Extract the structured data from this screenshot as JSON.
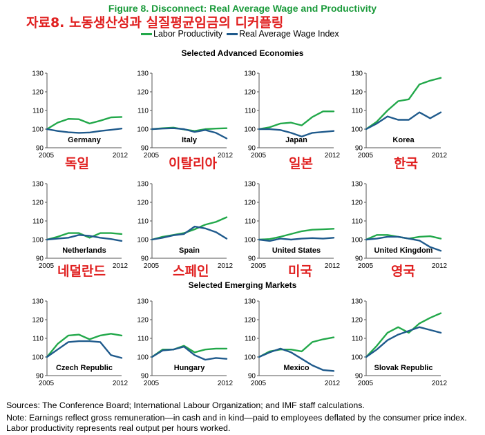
{
  "header": {
    "figure_title": "Figure 8. Disconnect: Real Average Wage and Productivity",
    "korean_title": "자료8. 노동생산성과 실질평균임금의 디커플링"
  },
  "legend": {
    "labor": "Labor Productivity",
    "wage": "Real Average Wage Index",
    "labor_color": "#22a84a",
    "wage_color": "#1f5a8c"
  },
  "sections": {
    "advanced": "Selected Advanced Economies",
    "emerging": "Selected Emerging Markets"
  },
  "korean_labels": [
    "독일",
    "이탈리아",
    "일본",
    "한국",
    "네덜란드",
    "스페인",
    "미국",
    "영국"
  ],
  "footer": {
    "sources": "Sources: The Conference Board; International Labour Organization; and IMF staff calculations.",
    "note_line1": "Note: Earnings reflect gross remuneration—in cash and in kind—paid to employees deflated by the consumer price index.",
    "note_line2": "Labor productivity represents real output per hours worked."
  },
  "chart_data": [
    {
      "type": "line",
      "title": "Germany",
      "x": [
        2005,
        2006,
        2007,
        2008,
        2009,
        2010,
        2011,
        2012
      ],
      "x_tick_labels": [
        "2005",
        "2012"
      ],
      "ylim": [
        90,
        130
      ],
      "yticks": [
        90,
        100,
        110,
        120,
        130
      ],
      "series": [
        {
          "name": "Labor Productivity",
          "values": [
            100,
            103.5,
            105.5,
            105.3,
            103,
            104.5,
            106.3,
            106.5
          ]
        },
        {
          "name": "Real Average Wage Index",
          "values": [
            100,
            99,
            98.3,
            98,
            98.2,
            99,
            99.6,
            100.3
          ]
        }
      ]
    },
    {
      "type": "line",
      "title": "Italy",
      "x": [
        2005,
        2006,
        2007,
        2008,
        2009,
        2010,
        2011,
        2012
      ],
      "x_tick_labels": [
        "2005",
        "2012"
      ],
      "ylim": [
        90,
        130
      ],
      "yticks": [
        90,
        100,
        110,
        120,
        130
      ],
      "series": [
        {
          "name": "Labor Productivity",
          "values": [
            100,
            100.5,
            100.8,
            99.8,
            99,
            100,
            100.3,
            100.5
          ]
        },
        {
          "name": "Real Average Wage Index",
          "values": [
            100,
            100.3,
            100.5,
            100,
            98.5,
            99.5,
            98,
            95
          ]
        }
      ]
    },
    {
      "type": "line",
      "title": "Japan",
      "x": [
        2005,
        2006,
        2007,
        2008,
        2009,
        2010,
        2011,
        2012
      ],
      "x_tick_labels": [
        "2005",
        "2012"
      ],
      "ylim": [
        90,
        130
      ],
      "yticks": [
        90,
        100,
        110,
        120,
        130
      ],
      "series": [
        {
          "name": "Labor Productivity",
          "values": [
            100,
            101,
            103,
            103.5,
            102,
            106.5,
            109.5,
            109.5
          ]
        },
        {
          "name": "Real Average Wage Index",
          "values": [
            100,
            100,
            99.5,
            98,
            96,
            98,
            98.5,
            99
          ]
        }
      ]
    },
    {
      "type": "line",
      "title": "Korea",
      "x": [
        2005,
        2006,
        2007,
        2008,
        2009,
        2010,
        2011,
        2012
      ],
      "x_tick_labels": [
        "2005",
        "2012"
      ],
      "ylim": [
        90,
        130
      ],
      "yticks": [
        90,
        100,
        110,
        120,
        130
      ],
      "series": [
        {
          "name": "Labor Productivity",
          "values": [
            100,
            104,
            110,
            115,
            116,
            124,
            126,
            127.5
          ]
        },
        {
          "name": "Real Average Wage Index",
          "values": [
            100,
            103,
            106.8,
            105,
            105,
            109,
            105.8,
            109
          ]
        }
      ]
    },
    {
      "type": "line",
      "title": "Netherlands",
      "x": [
        2005,
        2006,
        2007,
        2008,
        2009,
        2010,
        2011,
        2012
      ],
      "x_tick_labels": [
        "2005",
        "2012"
      ],
      "ylim": [
        90,
        130
      ],
      "yticks": [
        90,
        100,
        110,
        120,
        130
      ],
      "series": [
        {
          "name": "Labor Productivity",
          "values": [
            100,
            101.5,
            103.5,
            103.5,
            101,
            103.5,
            103.5,
            103
          ]
        },
        {
          "name": "Real Average Wage Index",
          "values": [
            100,
            100.5,
            101,
            102.5,
            102,
            101,
            100.3,
            99.3
          ]
        }
      ]
    },
    {
      "type": "line",
      "title": "Spain",
      "x": [
        2005,
        2006,
        2007,
        2008,
        2009,
        2010,
        2011,
        2012
      ],
      "x_tick_labels": [
        "2005",
        "2012"
      ],
      "ylim": [
        90,
        130
      ],
      "yticks": [
        90,
        100,
        110,
        120,
        130
      ],
      "series": [
        {
          "name": "Labor Productivity",
          "values": [
            100,
            101.5,
            102.5,
            103.5,
            105.5,
            108,
            109.5,
            112
          ]
        },
        {
          "name": "Real Average Wage Index",
          "values": [
            100,
            101,
            102.3,
            103,
            107,
            106,
            104,
            100.5
          ]
        }
      ]
    },
    {
      "type": "line",
      "title": "United States",
      "x": [
        2005,
        2006,
        2007,
        2008,
        2009,
        2010,
        2011,
        2012
      ],
      "x_tick_labels": [
        "2005",
        "2012"
      ],
      "ylim": [
        90,
        130
      ],
      "yticks": [
        90,
        100,
        110,
        120,
        130
      ],
      "series": [
        {
          "name": "Labor Productivity",
          "values": [
            100,
            100.3,
            101.5,
            103,
            104.5,
            105.3,
            105.5,
            105.8
          ]
        },
        {
          "name": "Real Average Wage Index",
          "values": [
            100,
            99.3,
            100.5,
            100,
            100.5,
            100.8,
            100.5,
            101
          ]
        }
      ]
    },
    {
      "type": "line",
      "title": "United Kingdom",
      "x": [
        2005,
        2006,
        2007,
        2008,
        2009,
        2010,
        2011,
        2012
      ],
      "x_tick_labels": [
        "2005",
        "2012"
      ],
      "ylim": [
        90,
        130
      ],
      "yticks": [
        90,
        100,
        110,
        120,
        130
      ],
      "series": [
        {
          "name": "Labor Productivity",
          "values": [
            100,
            102.5,
            102.5,
            101.5,
            100.5,
            101.5,
            101.8,
            100.5
          ]
        },
        {
          "name": "Real Average Wage Index",
          "values": [
            100,
            100.5,
            101.5,
            101.5,
            100.5,
            99.5,
            96,
            94
          ]
        }
      ]
    },
    {
      "type": "line",
      "title": "Czech Republic",
      "x": [
        2005,
        2006,
        2007,
        2008,
        2009,
        2010,
        2011,
        2012
      ],
      "x_tick_labels": [
        "2005",
        "2012"
      ],
      "ylim": [
        90,
        130
      ],
      "yticks": [
        90,
        100,
        110,
        120,
        130
      ],
      "series": [
        {
          "name": "Labor Productivity",
          "values": [
            100,
            107,
            111.5,
            112,
            109.5,
            111.5,
            112.5,
            111.5
          ]
        },
        {
          "name": "Real Average Wage Index",
          "values": [
            100,
            104,
            108,
            108.5,
            108.5,
            108,
            101,
            99.5
          ]
        }
      ]
    },
    {
      "type": "line",
      "title": "Hungary",
      "x": [
        2005,
        2006,
        2007,
        2008,
        2009,
        2010,
        2011,
        2012
      ],
      "x_tick_labels": [
        "2005",
        "2012"
      ],
      "ylim": [
        90,
        130
      ],
      "yticks": [
        90,
        100,
        110,
        120,
        130
      ],
      "series": [
        {
          "name": "Labor Productivity",
          "values": [
            100,
            104,
            104,
            106,
            102.5,
            104,
            104.5,
            104.5
          ]
        },
        {
          "name": "Real Average Wage Index",
          "values": [
            100,
            103.5,
            104,
            105.5,
            101,
            98.5,
            99.5,
            99
          ]
        }
      ]
    },
    {
      "type": "line",
      "title": "Mexico",
      "x": [
        2005,
        2006,
        2007,
        2008,
        2009,
        2010,
        2011,
        2012
      ],
      "x_tick_labels": [
        "2005",
        "2012"
      ],
      "ylim": [
        90,
        130
      ],
      "yticks": [
        90,
        100,
        110,
        120,
        130
      ],
      "series": [
        {
          "name": "Labor Productivity",
          "values": [
            100,
            103,
            104,
            104,
            103,
            108,
            109.5,
            110.5
          ]
        },
        {
          "name": "Real Average Wage Index",
          "values": [
            100,
            102.5,
            104.5,
            102.5,
            99,
            95.5,
            93,
            92.5
          ]
        }
      ]
    },
    {
      "type": "line",
      "title": "Slovak Republic",
      "x": [
        2005,
        2006,
        2007,
        2008,
        2009,
        2010,
        2011,
        2012
      ],
      "x_tick_labels": [
        "2005",
        "2012"
      ],
      "ylim": [
        90,
        130
      ],
      "yticks": [
        90,
        100,
        110,
        120,
        130
      ],
      "series": [
        {
          "name": "Labor Productivity",
          "values": [
            100,
            106,
            113,
            116,
            113,
            118,
            121,
            123.5
          ]
        },
        {
          "name": "Real Average Wage Index",
          "values": [
            100,
            104,
            109,
            112,
            114,
            116,
            114.5,
            113
          ]
        }
      ]
    }
  ]
}
